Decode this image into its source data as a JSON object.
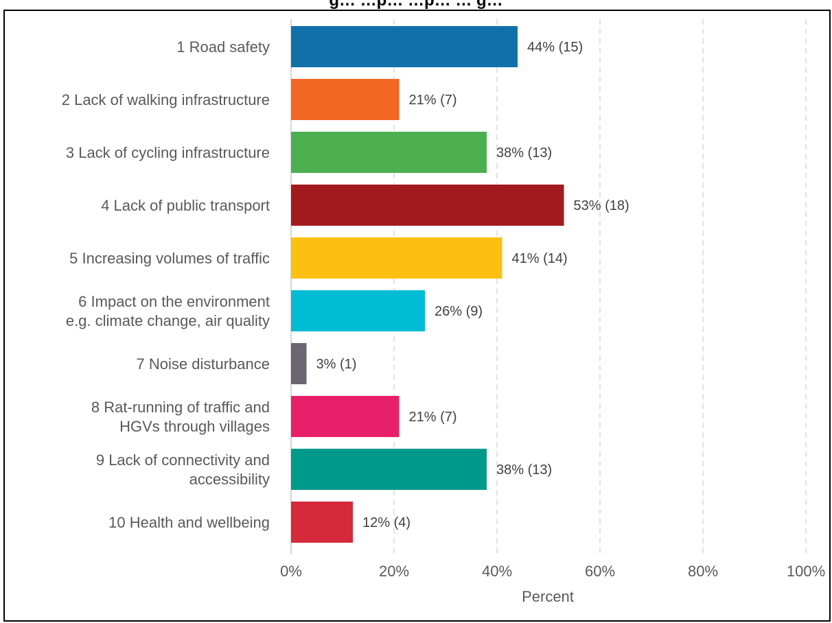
{
  "chart_data": {
    "type": "bar",
    "orientation": "horizontal",
    "title": "g… …p… …p… … g…",
    "categories": [
      [
        "1 Road safety"
      ],
      [
        "2 Lack of walking infrastructure"
      ],
      [
        "3 Lack of cycling infrastructure"
      ],
      [
        "4 Lack of public transport"
      ],
      [
        "5 Increasing volumes of traffic"
      ],
      [
        "6 Impact on the environment",
        "e.g. climate change, air quality"
      ],
      [
        "7 Noise disturbance"
      ],
      [
        "8 Rat-running of traffic and",
        "HGVs through villages"
      ],
      [
        "9 Lack of connectivity and",
        "accessibility"
      ],
      [
        "10 Health and wellbeing"
      ]
    ],
    "values": [
      44,
      21,
      38,
      53,
      41,
      26,
      3,
      21,
      38,
      12
    ],
    "data_labels": [
      "44% (15)",
      "21% (7)",
      "38% (13)",
      "53% (18)",
      "41% (14)",
      "26% (9)",
      "3% (1)",
      "21% (7)",
      "38% (13)",
      "12% (4)"
    ],
    "colors": [
      "#1170aa",
      "#f26722",
      "#4db050",
      "#a31a1e",
      "#fdc010",
      "#00bcd4",
      "#6b6670",
      "#e8206a",
      "#009a8a",
      "#d42a3b"
    ],
    "xlim": [
      0,
      100
    ],
    "xticks": [
      0,
      20,
      40,
      60,
      80,
      100
    ],
    "xtick_labels": [
      "0%",
      "20%",
      "40%",
      "60%",
      "80%",
      "100%"
    ],
    "xlabel": "Percent",
    "grid": "vertical-dashed",
    "legend": "none"
  }
}
